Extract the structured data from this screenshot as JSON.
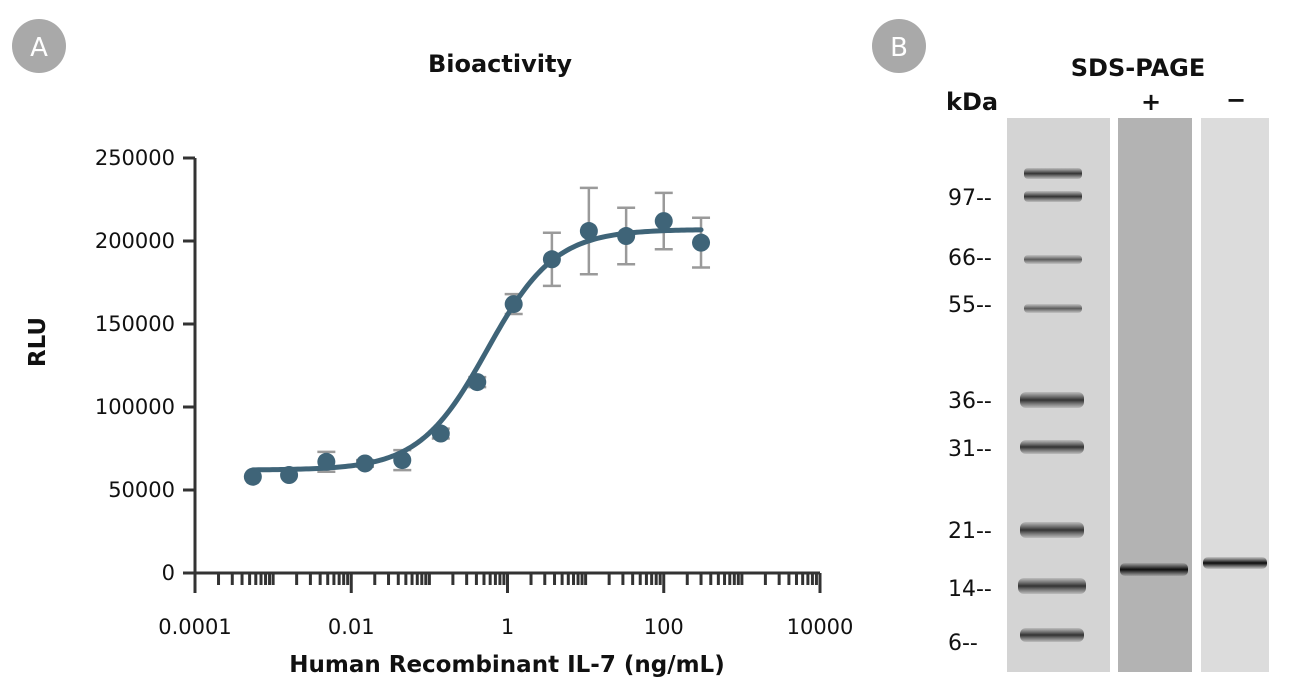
{
  "panels": {
    "a_badge": "A",
    "b_badge": "B"
  },
  "colors": {
    "series": "#3f6478",
    "errorbar": "#9a9a9a",
    "axis": "#333333",
    "badge": "#a9a9a9"
  },
  "chart_data": [
    {
      "type": "scatter",
      "title": "Bioactivity",
      "xlabel": "Human Recombinant IL-7 (ng/mL)",
      "ylabel": "RLU",
      "xscale": "log",
      "xlim": [
        0.0001,
        10000
      ],
      "ylim": [
        0,
        250000
      ],
      "xticks": [
        0.0001,
        0.01,
        1,
        100,
        10000
      ],
      "xtick_labels": [
        "0.0001",
        "0.01",
        "1",
        "100",
        "10000"
      ],
      "yticks": [
        0,
        50000,
        100000,
        150000,
        200000,
        250000
      ],
      "ytick_labels": [
        "0",
        "50000",
        "100000",
        "150000",
        "200000",
        "250000"
      ],
      "series": [
        {
          "name": "IL-7",
          "x": [
            0.00055,
            0.0016,
            0.0048,
            0.015,
            0.045,
            0.14,
            0.41,
            1.2,
            3.7,
            11,
            33,
            100,
            300
          ],
          "y": [
            58000,
            59000,
            67000,
            66000,
            68000,
            84000,
            115000,
            162000,
            189000,
            206000,
            203000,
            212000,
            199000
          ],
          "error": [
            0,
            0,
            6000,
            2000,
            6000,
            3000,
            3000,
            6000,
            16000,
            26000,
            17000,
            17000,
            15000
          ]
        }
      ],
      "fit": {
        "model": "4PL",
        "bottom": 62000,
        "top": 207000,
        "ec50": 0.55,
        "hill": 1.0
      }
    },
    {
      "type": "gel",
      "title": "SDS-PAGE",
      "unit_label": "kDa",
      "lanes": [
        "+",
        "−"
      ],
      "markers": [
        "97--",
        "66--",
        "55--",
        "36--",
        "31--",
        "21--",
        "14--",
        "6--"
      ]
    }
  ]
}
